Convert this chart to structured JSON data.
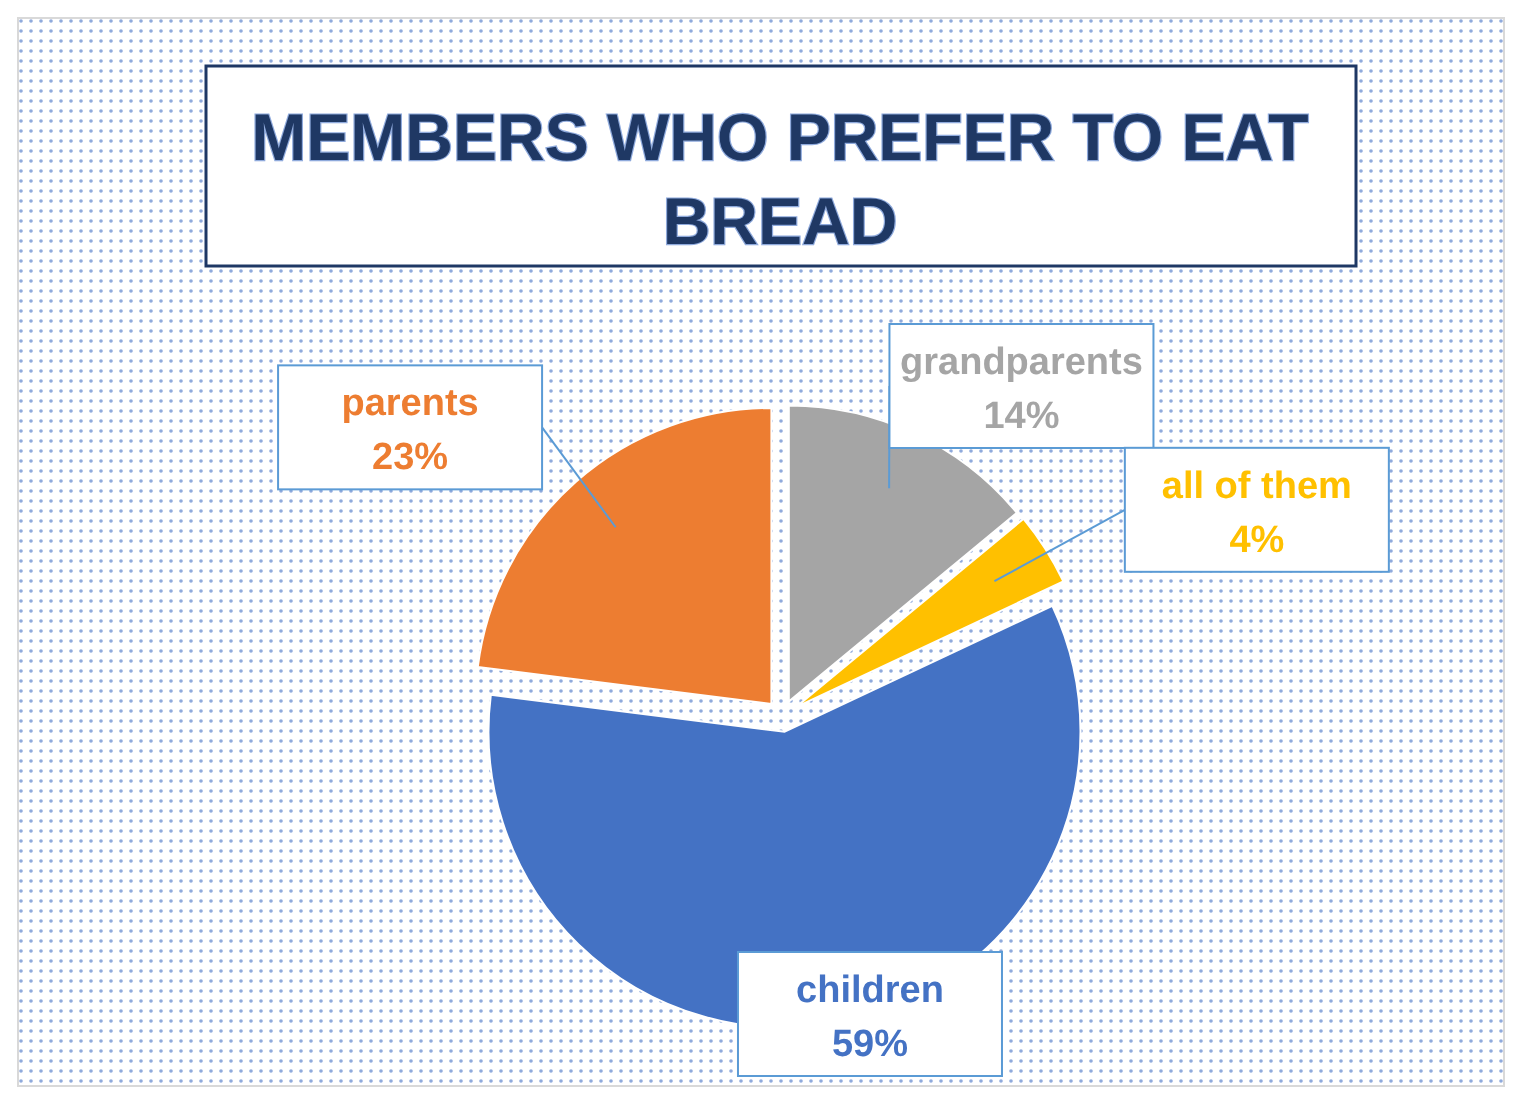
{
  "chart_data": {
    "type": "pie",
    "title": "MEMBERS WHO PREFER TO EAT BREAD",
    "categories": [
      "grandparents",
      "all of them",
      "children",
      "parents"
    ],
    "values": [
      14,
      4,
      59,
      23
    ],
    "value_labels": [
      "14%",
      "4%",
      "59%",
      "23%"
    ],
    "colors": [
      "#a5a5a5",
      "#ffc000",
      "#4472c4",
      "#ed7d31"
    ]
  }
}
